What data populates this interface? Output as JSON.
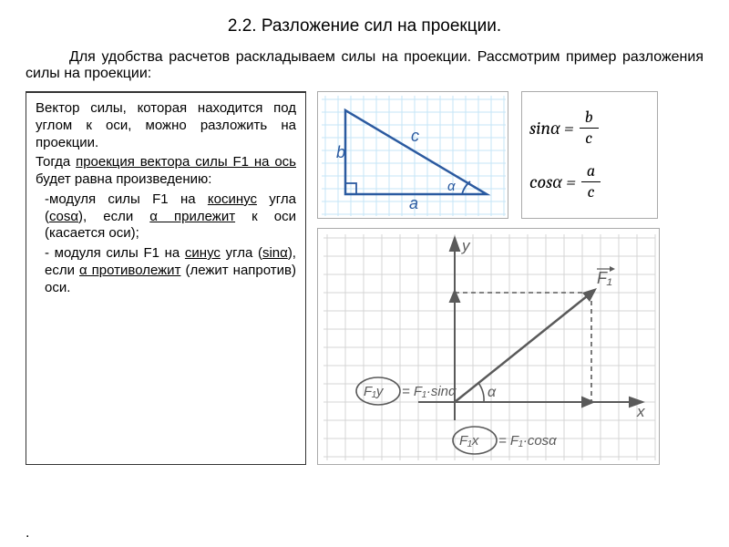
{
  "title": "2.2. Разложение сил на проекции.",
  "intro": "Для удобства расчетов раскладываем силы на проекции. Рассмотрим пример разложения силы на проекции:",
  "left": {
    "p1a": "Вектор силы, которая находится под углом к оси, можно разложить на проекции.",
    "p2a": "Тогда ",
    "p2u": "проекция вектора силы F1 на ось ",
    "p2b": "будет равна произведению:",
    "li1a": "модуля силы F1 на ",
    "li1u1": "косинус",
    "li1b": " угла (",
    "li1u2": "cosα",
    "li1c": "), если ",
    "li1u3": "α прилежит",
    "li1d": " к оси (касается оси);",
    "li2a": " модуля силы F1 на ",
    "li2u1": "синус",
    "li2b": " угла (",
    "li2u2": "sinα",
    "li2c": "), если ",
    "li2u3": "α противолежит",
    "li2d": " (лежит напротив) оси."
  },
  "formulas": {
    "sin_lhs": "sinα =",
    "sin_num": "b",
    "sin_den": "c",
    "cos_lhs": "cosα =",
    "cos_num": "a",
    "cos_den": "c"
  },
  "triangle": {
    "grid_color": "#c6e6f7",
    "line_color": "#2b5aa0",
    "label_a": "a",
    "label_b": "b",
    "label_c": "c",
    "label_alpha": "α"
  },
  "vector": {
    "grid_color": "#d4d4d4",
    "line_color": "#5a5a5a",
    "axis_y": "y",
    "axis_x": "x",
    "vec_label": "F₁",
    "alpha": "α",
    "fy_label": "F₁y",
    "fy_eq": "= F₁·sinα",
    "fx_label": "F₁x",
    "fx_eq": "= F₁·cosα"
  },
  "footer_dot": "."
}
